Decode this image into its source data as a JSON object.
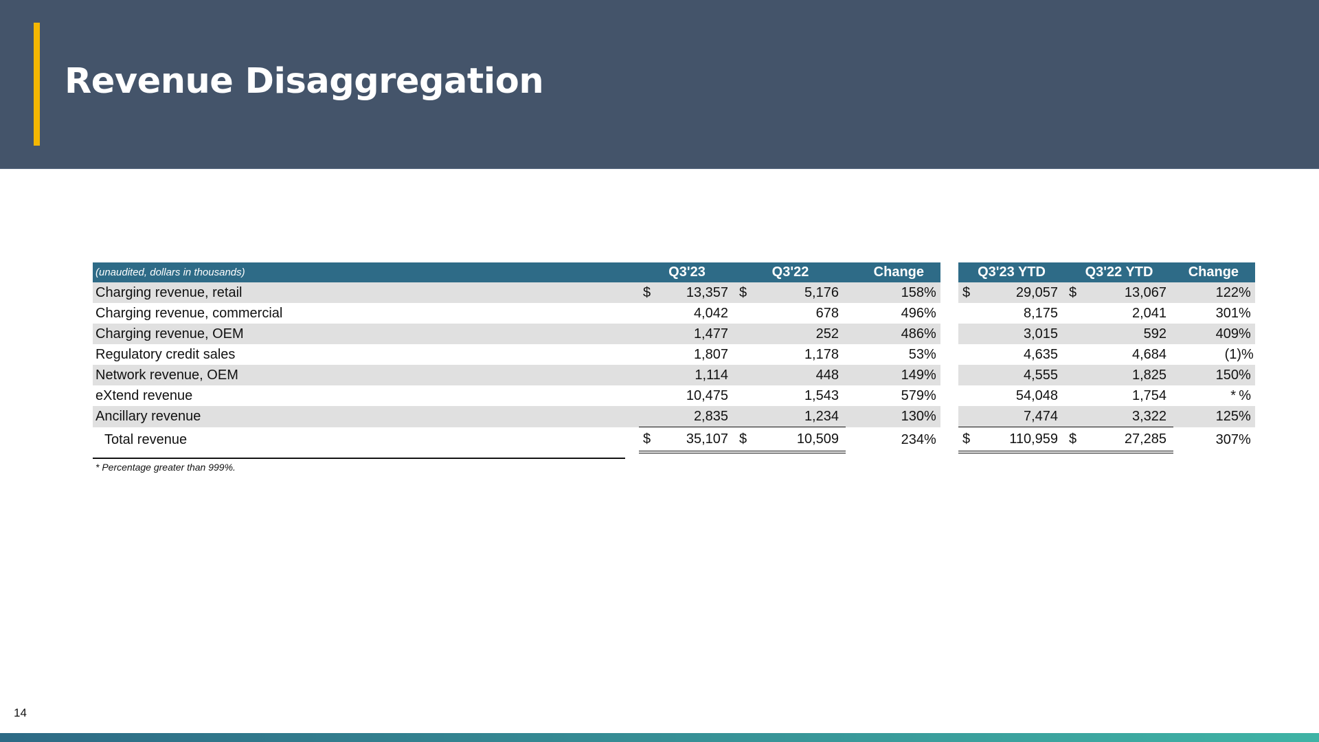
{
  "slide": {
    "title": "Revenue Disaggregation",
    "page_number": "14",
    "footnote": "* Percentage greater than 999%.",
    "colors": {
      "header_bg": "#44546a",
      "accent_bar": "#f5b700",
      "table_header_bg": "#2e6b87",
      "row_shade": "#e0e0e0",
      "footer_gradient_start": "#2d6a85",
      "footer_gradient_end": "#3fb3a5"
    }
  },
  "table": {
    "caption": "(unaudited, dollars in thousands)",
    "headers": [
      "Q3'23",
      "Q3'22",
      "Change",
      "Q3'23 YTD",
      "Q3'22 YTD",
      "Change"
    ],
    "currency_symbol": "$",
    "rows": [
      {
        "label": "Charging revenue, retail",
        "q3_23": "13,357",
        "q3_22": "5,176",
        "change": "158",
        "ytd_23": "29,057",
        "ytd_22": "13,067",
        "ytd_change": "122",
        "currency": true
      },
      {
        "label": "Charging revenue, commercial",
        "q3_23": "4,042",
        "q3_22": "678",
        "change": "496",
        "ytd_23": "8,175",
        "ytd_22": "2,041",
        "ytd_change": "301"
      },
      {
        "label": "Charging revenue, OEM",
        "q3_23": "1,477",
        "q3_22": "252",
        "change": "486",
        "ytd_23": "3,015",
        "ytd_22": "592",
        "ytd_change": "409"
      },
      {
        "label": "Regulatory credit sales",
        "q3_23": "1,807",
        "q3_22": "1,178",
        "change": "53",
        "ytd_23": "4,635",
        "ytd_22": "4,684",
        "ytd_change": "(1)"
      },
      {
        "label": "Network revenue, OEM",
        "q3_23": "1,114",
        "q3_22": "448",
        "change": "149",
        "ytd_23": "4,555",
        "ytd_22": "1,825",
        "ytd_change": "150"
      },
      {
        "label": "eXtend revenue",
        "q3_23": "10,475",
        "q3_22": "1,543",
        "change": "579",
        "ytd_23": "54,048",
        "ytd_22": "1,754",
        "ytd_change": "*"
      },
      {
        "label": "Ancillary revenue",
        "q3_23": "2,835",
        "q3_22": "1,234",
        "change": "130",
        "ytd_23": "7,474",
        "ytd_22": "3,322",
        "ytd_change": "125"
      }
    ],
    "total": {
      "label": "Total revenue",
      "q3_23": "35,107",
      "q3_22": "10,509",
      "change": "234",
      "ytd_23": "110,959",
      "ytd_22": "27,285",
      "ytd_change": "307"
    },
    "percent_unit": "%"
  }
}
